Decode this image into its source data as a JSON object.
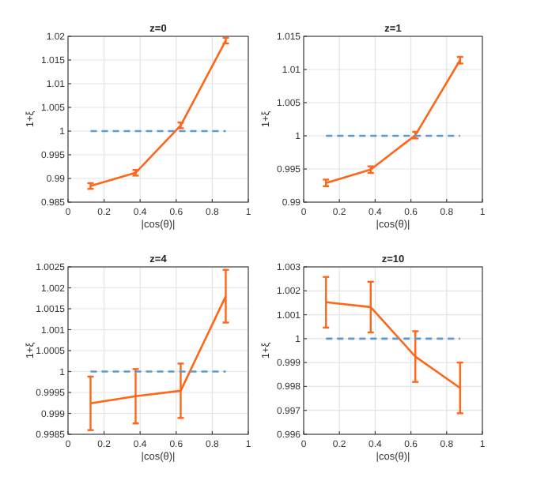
{
  "chart_data": [
    {
      "type": "line",
      "title": "z=0",
      "xlabel": "|cos(θ)|",
      "ylabel": "1+ξ",
      "xlim": [
        0,
        1
      ],
      "xticks": [
        0,
        0.2,
        0.4,
        0.6,
        0.8,
        1
      ],
      "ylim": [
        0.985,
        1.02
      ],
      "yticks": [
        0.985,
        0.99,
        0.995,
        1,
        1.005,
        1.01,
        1.015,
        1.02
      ],
      "grid": true,
      "marker": "none",
      "series": [
        {
          "color": "#ff6619",
          "x": [
            0.125,
            0.375,
            0.625,
            0.875
          ],
          "values": [
            0.9884,
            0.9912,
            1.0012,
            1.0191
          ],
          "errors": [
            0.0006,
            0.0006,
            0.0006,
            0.0006
          ]
        },
        {
          "color": "#5b9bd5",
          "line_style": "dashed",
          "x": [
            0.125,
            0.875
          ],
          "values": [
            1,
            1
          ]
        }
      ]
    },
    {
      "type": "line",
      "title": "z=1",
      "xlabel": "|cos(θ)|",
      "ylabel": "1+ξ",
      "xlim": [
        0,
        1
      ],
      "xticks": [
        0,
        0.2,
        0.4,
        0.6,
        0.8,
        1
      ],
      "ylim": [
        0.99,
        1.015
      ],
      "yticks": [
        0.99,
        0.995,
        1,
        1.005,
        1.01,
        1.015
      ],
      "grid": true,
      "marker": "none",
      "series": [
        {
          "color": "#ff6619",
          "x": [
            0.125,
            0.375,
            0.625,
            0.875
          ],
          "values": [
            0.9929,
            0.9949,
            1.0001,
            1.0114
          ],
          "errors": [
            0.0005,
            0.0005,
            0.0005,
            0.0005
          ]
        },
        {
          "color": "#5b9bd5",
          "line_style": "dashed",
          "x": [
            0.125,
            0.875
          ],
          "values": [
            1,
            1
          ]
        }
      ]
    },
    {
      "type": "line",
      "title": "z=4",
      "xlabel": "|cos(θ)|",
      "ylabel": "1+ξ",
      "xlim": [
        0,
        1
      ],
      "xticks": [
        0,
        0.2,
        0.4,
        0.6,
        0.8,
        1
      ],
      "ylim": [
        0.9985,
        1.0025
      ],
      "yticks": [
        0.9985,
        0.999,
        0.9995,
        1,
        1.0005,
        1.001,
        1.0015,
        1.002,
        1.0025
      ],
      "grid": true,
      "marker": "none",
      "series": [
        {
          "color": "#ff6619",
          "x": [
            0.125,
            0.375,
            0.625,
            0.875
          ],
          "values": [
            0.99924,
            0.99941,
            0.99954,
            1.0018
          ],
          "errors": [
            0.00064,
            0.00065,
            0.00065,
            0.00063
          ]
        },
        {
          "color": "#5b9bd5",
          "line_style": "dashed",
          "x": [
            0.125,
            0.875
          ],
          "values": [
            1,
            1
          ]
        }
      ]
    },
    {
      "type": "line",
      "title": "z=10",
      "xlabel": "|cos(θ)|",
      "ylabel": "1+ξ",
      "xlim": [
        0,
        1
      ],
      "xticks": [
        0,
        0.2,
        0.4,
        0.6,
        0.8,
        1
      ],
      "ylim": [
        0.996,
        1.003
      ],
      "yticks": [
        0.996,
        0.997,
        0.998,
        0.999,
        1,
        1.001,
        1.002,
        1.003
      ],
      "grid": true,
      "marker": "none",
      "series": [
        {
          "color": "#ff6619",
          "x": [
            0.125,
            0.375,
            0.625,
            0.875
          ],
          "values": [
            1.00152,
            1.00132,
            0.99925,
            0.99794
          ],
          "errors": [
            0.00106,
            0.00106,
            0.00106,
            0.00106
          ]
        },
        {
          "color": "#5b9bd5",
          "line_style": "dashed",
          "x": [
            0.125,
            0.875
          ],
          "values": [
            1,
            1
          ]
        }
      ]
    }
  ]
}
